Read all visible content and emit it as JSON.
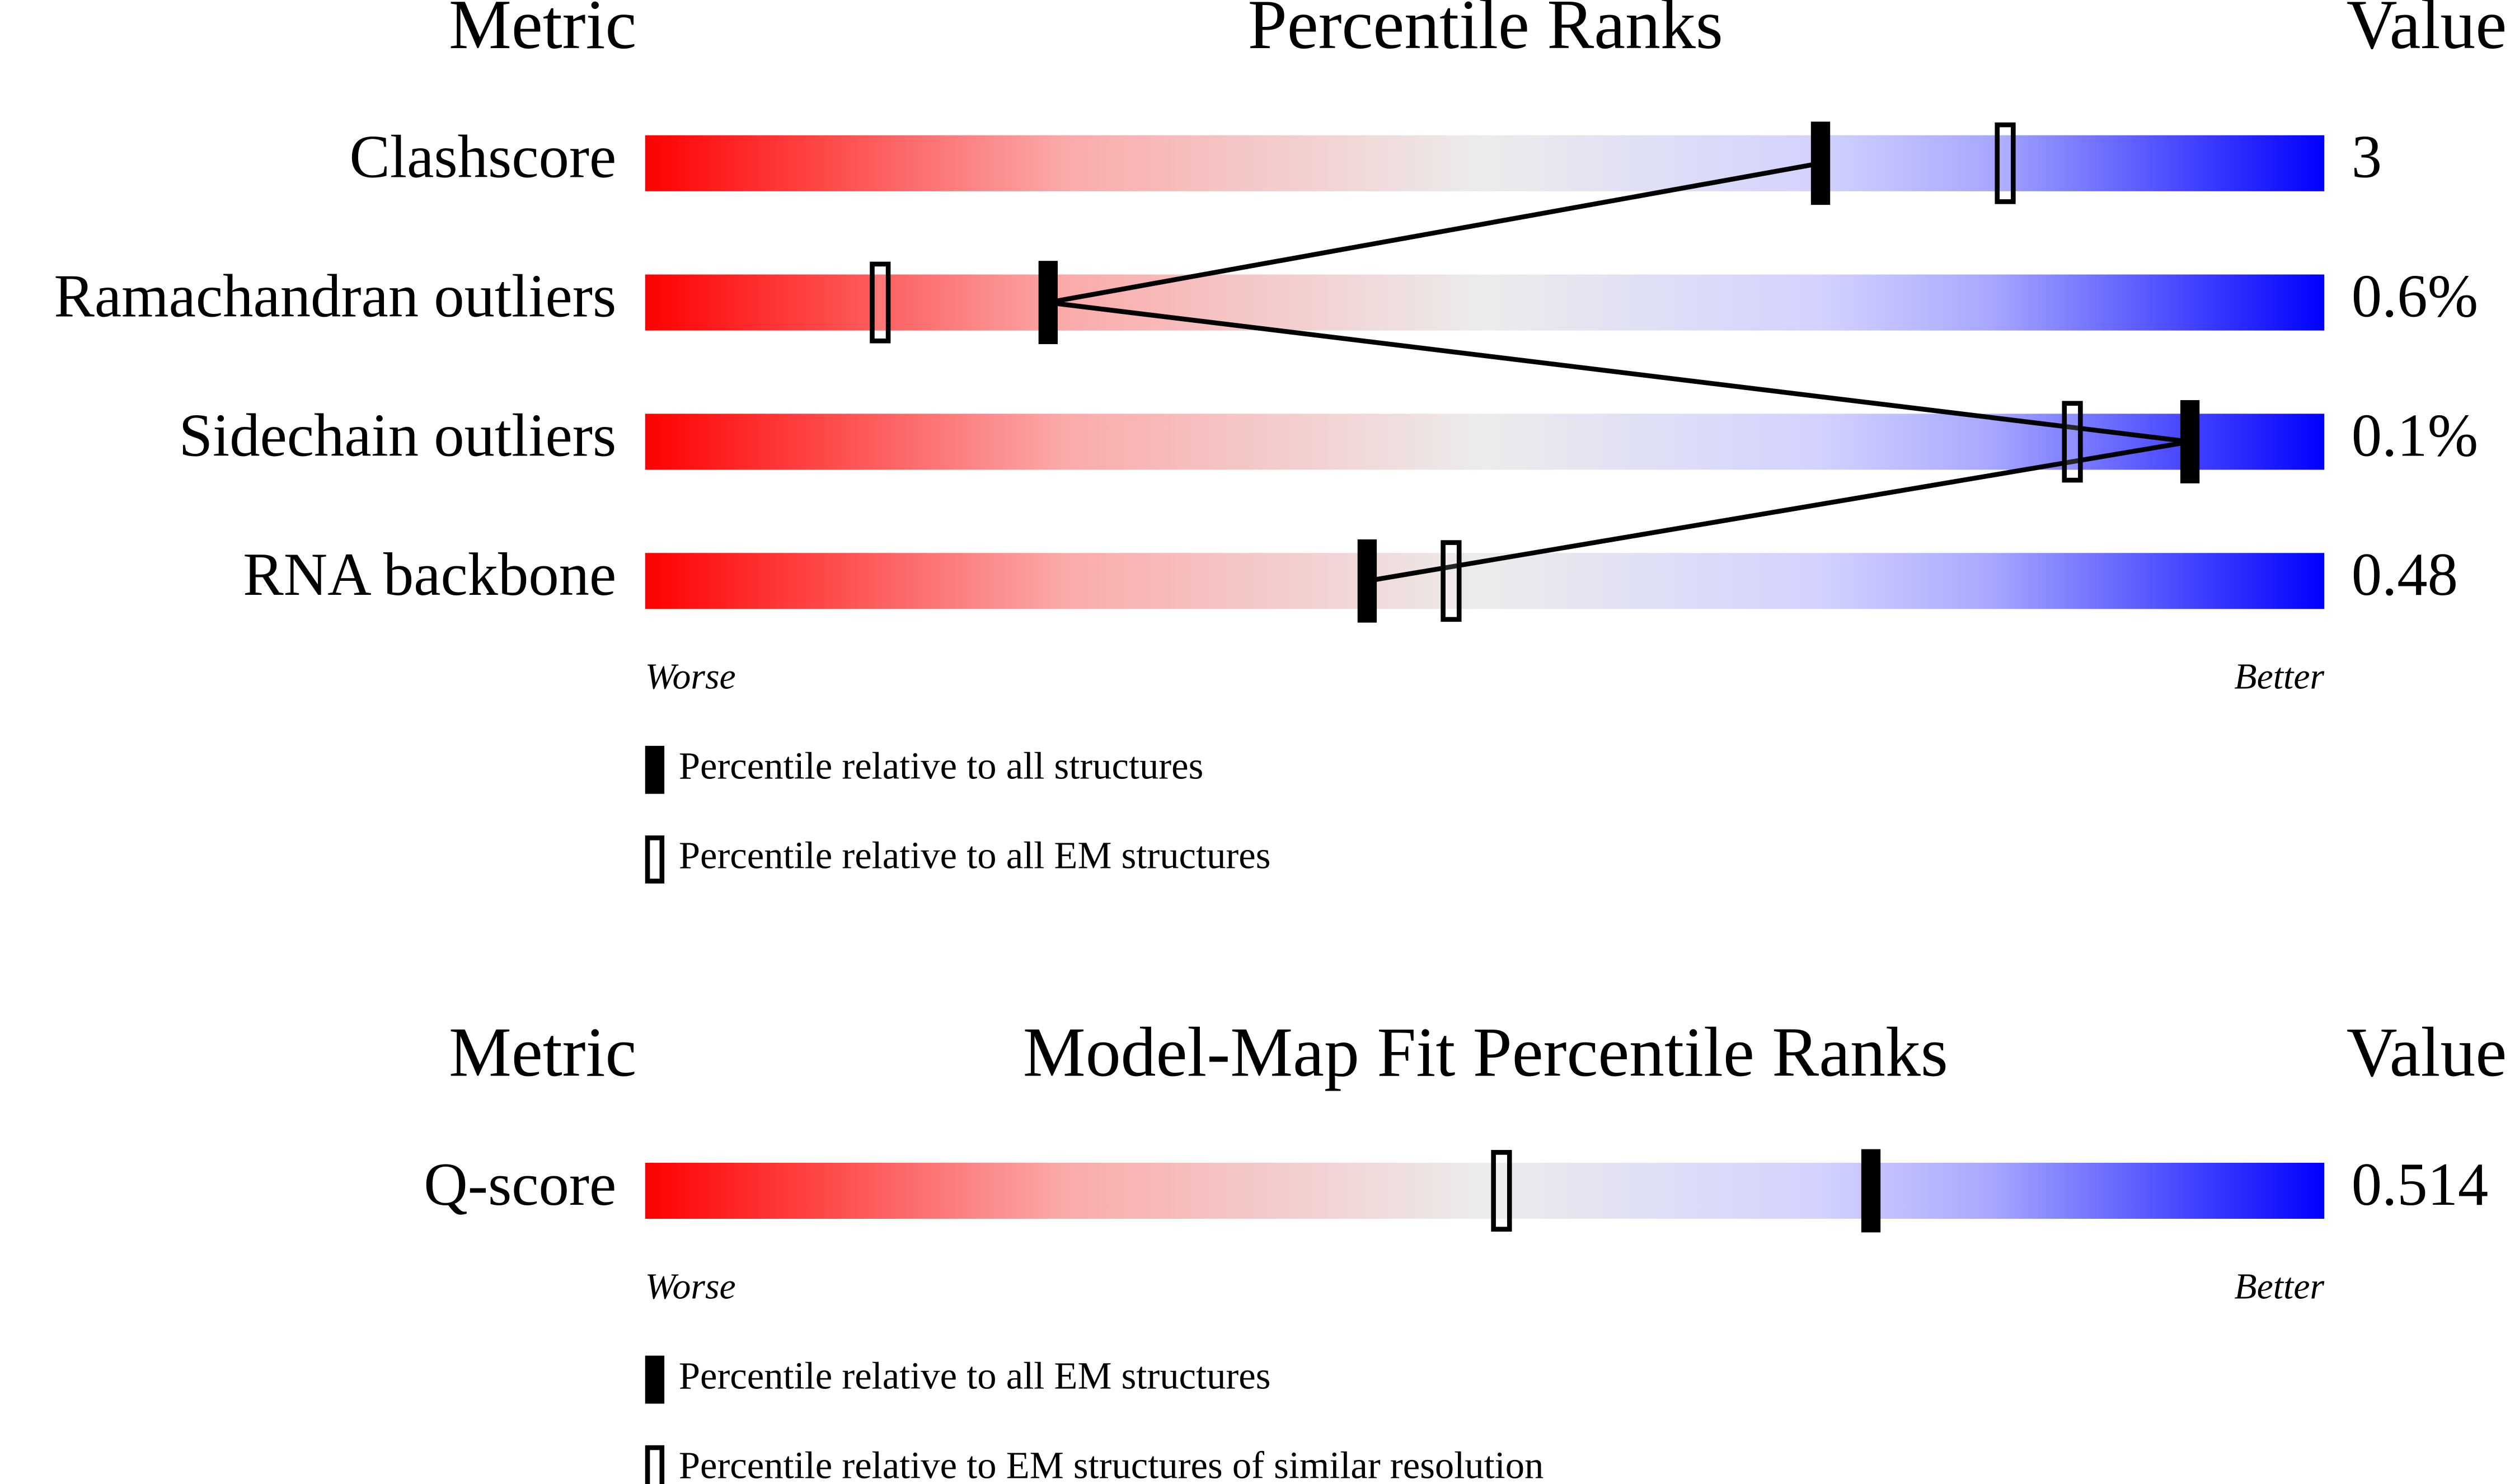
{
  "chart_data": [
    {
      "type": "percentile-slider",
      "header_left": "Metric",
      "title": "Percentile Ranks",
      "header_right": "Value",
      "categories": [
        "Clashscore",
        "Ramachandran outliers",
        "Sidechain outliers",
        "RNA backbone"
      ],
      "value_labels": [
        "3",
        "0.6%",
        "0.1%",
        "0.48"
      ],
      "xlim": [
        0,
        100
      ],
      "x_start_label": "Worse",
      "x_end_label": "Better",
      "connect": true,
      "series": [
        {
          "name": "Percentile relative to all structures",
          "color": "#000000",
          "filled": true,
          "values": [
            70,
            24,
            92,
            43
          ]
        },
        {
          "name": "Percentile relative to all EM structures",
          "color": "#000000",
          "filled": false,
          "values": [
            81,
            14,
            85,
            48
          ]
        }
      ]
    },
    {
      "type": "percentile-slider",
      "header_left": "Metric",
      "title": "Model-Map Fit Percentile Ranks",
      "header_right": "Value",
      "categories": [
        "Q-score"
      ],
      "value_labels": [
        "0.514"
      ],
      "xlim": [
        0,
        100
      ],
      "x_start_label": "Worse",
      "x_end_label": "Better",
      "connect": false,
      "series": [
        {
          "name": "Percentile relative to all EM structures",
          "color": "#000000",
          "filled": true,
          "values": [
            73
          ]
        },
        {
          "name": "Percentile relative to EM structures of similar resolution",
          "color": "#000000",
          "filled": false,
          "values": [
            51
          ]
        }
      ]
    }
  ]
}
